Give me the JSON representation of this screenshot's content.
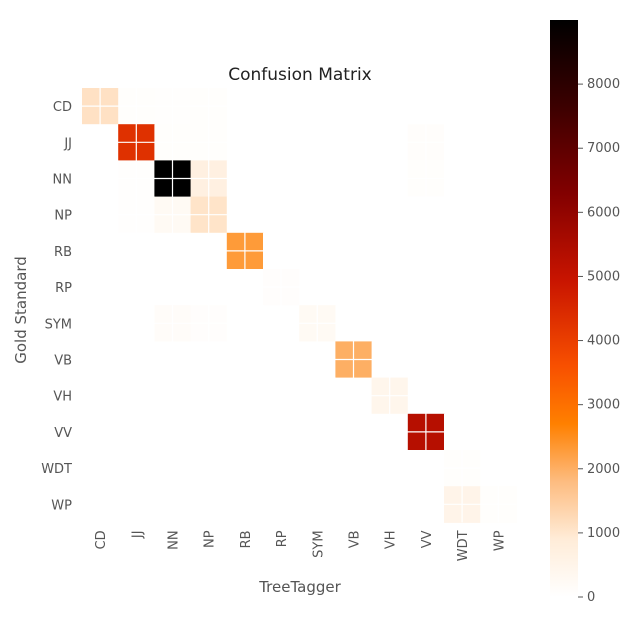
{
  "chart_data": {
    "type": "heatmap",
    "title": "Confusion Matrix",
    "xlabel": "TreeTagger",
    "ylabel": "Gold Standard",
    "x_categories": [
      "CD",
      "JJ",
      "NN",
      "NP",
      "RB",
      "RP",
      "SYM",
      "VB",
      "VH",
      "VV",
      "WDT",
      "WP"
    ],
    "y_categories": [
      "CD",
      "JJ",
      "NN",
      "NP",
      "RB",
      "RP",
      "SYM",
      "VB",
      "VH",
      "VV",
      "WDT",
      "WP"
    ],
    "matrix": [
      [
        1100,
        60,
        50,
        60,
        0,
        0,
        0,
        0,
        0,
        0,
        0,
        0
      ],
      [
        0,
        4300,
        60,
        60,
        0,
        0,
        0,
        0,
        0,
        100,
        0,
        0
      ],
      [
        0,
        50,
        9000,
        700,
        0,
        0,
        0,
        0,
        0,
        60,
        0,
        0
      ],
      [
        0,
        50,
        250,
        1050,
        0,
        0,
        0,
        0,
        0,
        0,
        0,
        0
      ],
      [
        0,
        0,
        0,
        0,
        2300,
        0,
        0,
        0,
        0,
        0,
        0,
        0
      ],
      [
        0,
        0,
        0,
        0,
        0,
        80,
        0,
        0,
        0,
        0,
        0,
        0
      ],
      [
        0,
        0,
        150,
        80,
        0,
        0,
        260,
        0,
        0,
        0,
        0,
        0
      ],
      [
        0,
        0,
        0,
        0,
        0,
        0,
        0,
        2000,
        0,
        0,
        0,
        0
      ],
      [
        0,
        0,
        0,
        0,
        0,
        0,
        0,
        0,
        450,
        0,
        0,
        0
      ],
      [
        0,
        0,
        0,
        0,
        0,
        0,
        0,
        0,
        0,
        5300,
        0,
        0
      ],
      [
        0,
        0,
        0,
        0,
        0,
        0,
        0,
        0,
        0,
        0,
        60,
        0
      ],
      [
        0,
        0,
        0,
        0,
        0,
        0,
        0,
        0,
        0,
        0,
        500,
        60
      ]
    ],
    "colorbar": {
      "min": 0,
      "max": 9000,
      "ticks": [
        0,
        1000,
        2000,
        3000,
        4000,
        5000,
        6000,
        7000,
        8000
      ],
      "tick_labels": [
        "0",
        "1000",
        "2000",
        "3000",
        "4000",
        "5000",
        "6000",
        "7000",
        "8000"
      ]
    },
    "colormap": "gist_heat_r",
    "grid": true
  }
}
